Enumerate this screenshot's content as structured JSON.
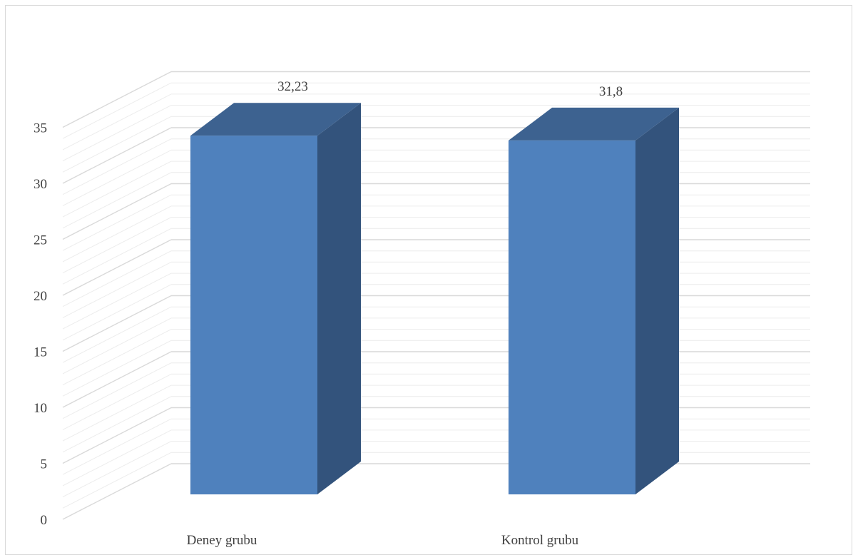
{
  "chart_data": {
    "type": "bar",
    "title": "",
    "xlabel": "",
    "ylabel": "",
    "categories": [
      "Deney grubu",
      "Kontrol grubu"
    ],
    "values": [
      32.23,
      31.8
    ],
    "data_labels": [
      "32,23",
      "31,8"
    ],
    "y_ticks": [
      "0",
      "5",
      "10",
      "15",
      "20",
      "25",
      "30",
      "35"
    ],
    "ylim": [
      0,
      35
    ],
    "minor_gridline_step": 1,
    "grid": true,
    "three_d": true,
    "legend": "none",
    "colors": {
      "bar_front": "#4f81bd",
      "bar_top": "#3d6290",
      "bar_side": "#33537c",
      "grid_major": "#d9d9d9",
      "grid_minor": "#ececec"
    }
  }
}
